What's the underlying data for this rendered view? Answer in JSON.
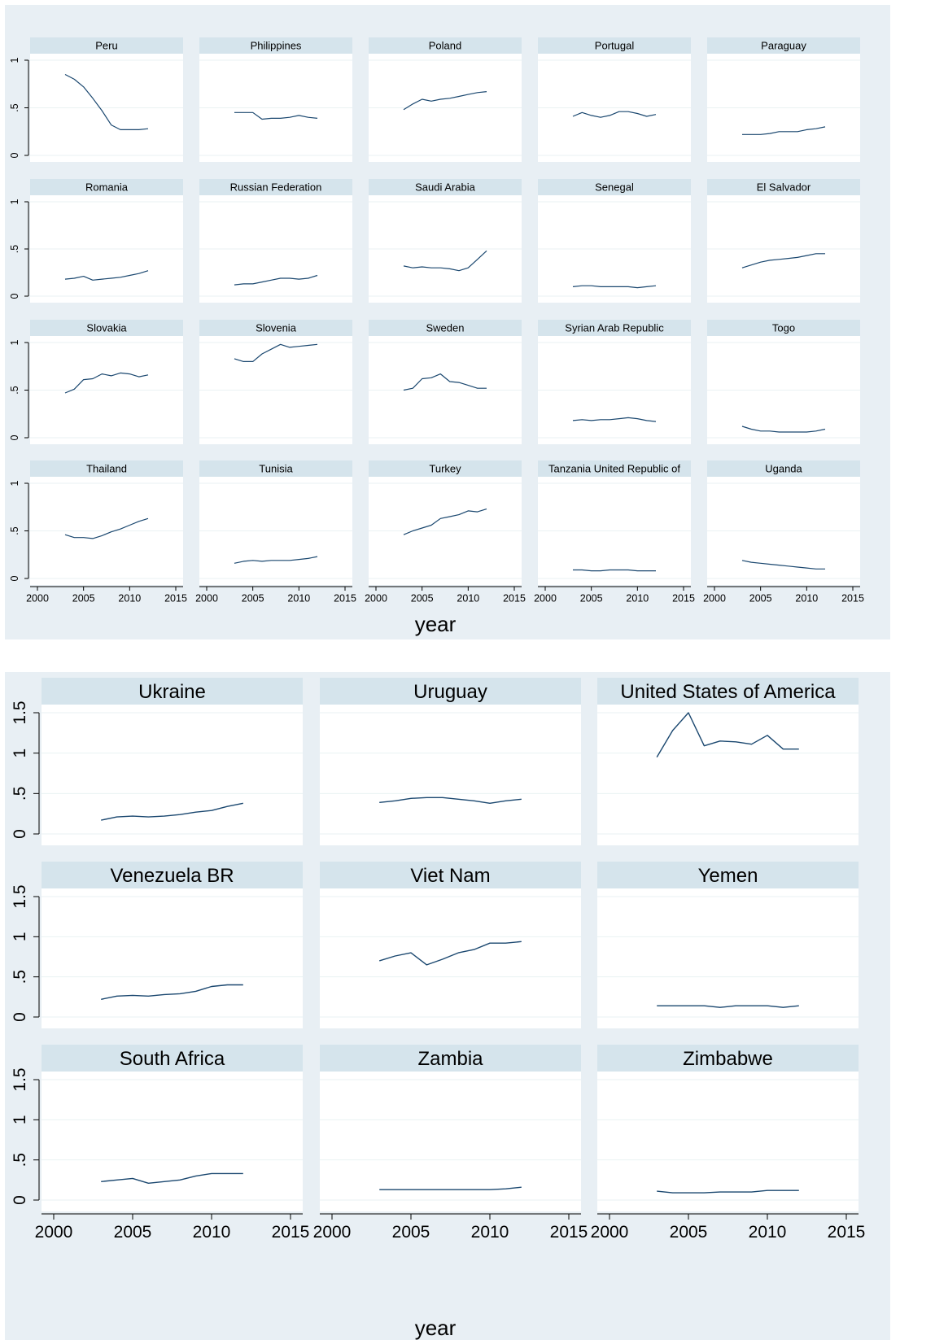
{
  "chart_data": [
    {
      "type": "line",
      "xlabel": "year",
      "ylabel": "",
      "xlim": [
        2000,
        2015
      ],
      "ylim": [
        0,
        1
      ],
      "xticks": [
        2000,
        2005,
        2010,
        2015
      ],
      "yticks": [
        0,
        0.5,
        1
      ],
      "ytick_labels": [
        "0",
        ".5",
        "1"
      ],
      "x": [
        2003,
        2004,
        2005,
        2006,
        2007,
        2008,
        2009,
        2010,
        2011,
        2012
      ],
      "panels": [
        {
          "name": "Peru",
          "values": [
            0.85,
            0.8,
            0.72,
            0.6,
            0.47,
            0.32,
            0.27,
            0.27,
            0.27,
            0.28
          ]
        },
        {
          "name": "Philippines",
          "values": [
            0.45,
            0.45,
            0.45,
            0.38,
            0.39,
            0.39,
            0.4,
            0.42,
            0.4,
            0.39
          ]
        },
        {
          "name": "Poland",
          "values": [
            0.48,
            0.54,
            0.59,
            0.57,
            0.59,
            0.6,
            0.62,
            0.64,
            0.66,
            0.67
          ]
        },
        {
          "name": "Portugal",
          "values": [
            0.41,
            0.45,
            0.42,
            0.4,
            0.42,
            0.46,
            0.46,
            0.44,
            0.41,
            0.43
          ]
        },
        {
          "name": "Paraguay",
          "values": [
            0.22,
            0.22,
            0.22,
            0.23,
            0.25,
            0.25,
            0.25,
            0.27,
            0.28,
            0.3
          ]
        },
        {
          "name": "Romania",
          "values": [
            0.18,
            0.19,
            0.21,
            0.17,
            0.18,
            0.19,
            0.2,
            0.22,
            0.24,
            0.27
          ]
        },
        {
          "name": "Russian Federation",
          "values": [
            0.12,
            0.13,
            0.13,
            0.15,
            0.17,
            0.19,
            0.19,
            0.18,
            0.19,
            0.22
          ]
        },
        {
          "name": "Saudi Arabia",
          "values": [
            0.32,
            0.3,
            0.31,
            0.3,
            0.3,
            0.29,
            0.27,
            0.3,
            0.39,
            0.48
          ]
        },
        {
          "name": "Senegal",
          "values": [
            0.1,
            0.11,
            0.11,
            0.1,
            0.1,
            0.1,
            0.1,
            0.09,
            0.1,
            0.11
          ]
        },
        {
          "name": "El Salvador",
          "values": [
            0.3,
            0.33,
            0.36,
            0.38,
            0.39,
            0.4,
            0.41,
            0.43,
            0.45,
            0.45
          ]
        },
        {
          "name": "Slovakia",
          "values": [
            0.47,
            0.51,
            0.61,
            0.62,
            0.67,
            0.65,
            0.68,
            0.67,
            0.64,
            0.66
          ]
        },
        {
          "name": "Slovenia",
          "values": [
            0.83,
            0.8,
            0.8,
            0.88,
            0.93,
            0.98,
            0.95,
            0.96,
            0.97,
            0.98
          ]
        },
        {
          "name": "Sweden",
          "values": [
            0.5,
            0.52,
            0.62,
            0.63,
            0.67,
            0.59,
            0.58,
            0.55,
            0.52,
            0.52
          ]
        },
        {
          "name": "Syrian Arab Republic",
          "values": [
            0.18,
            0.19,
            0.18,
            0.19,
            0.19,
            0.2,
            0.21,
            0.2,
            0.18,
            0.17
          ]
        },
        {
          "name": "Togo",
          "values": [
            0.12,
            0.09,
            0.07,
            0.07,
            0.06,
            0.06,
            0.06,
            0.06,
            0.07,
            0.09
          ]
        },
        {
          "name": "Thailand",
          "values": [
            0.46,
            0.43,
            0.43,
            0.42,
            0.45,
            0.49,
            0.52,
            0.56,
            0.6,
            0.63
          ]
        },
        {
          "name": "Tunisia",
          "values": [
            0.16,
            0.18,
            0.19,
            0.18,
            0.19,
            0.19,
            0.19,
            0.2,
            0.21,
            0.23
          ]
        },
        {
          "name": "Turkey",
          "values": [
            0.46,
            0.5,
            0.53,
            0.56,
            0.63,
            0.65,
            0.67,
            0.71,
            0.7,
            0.73
          ]
        },
        {
          "name": "Tanzania United Republic of",
          "values": [
            0.09,
            0.09,
            0.08,
            0.08,
            0.09,
            0.09,
            0.09,
            0.08,
            0.08,
            0.08
          ]
        },
        {
          "name": "Uganda",
          "values": [
            0.19,
            0.17,
            0.16,
            0.15,
            0.14,
            0.13,
            0.12,
            0.11,
            0.1,
            0.1
          ]
        }
      ]
    },
    {
      "type": "line",
      "xlabel": "year",
      "ylabel": "",
      "xlim": [
        2000,
        2015
      ],
      "ylim": [
        0,
        1.5
      ],
      "xticks": [
        2000,
        2005,
        2010,
        2015
      ],
      "yticks": [
        0,
        0.5,
        1,
        1.5
      ],
      "ytick_labels": [
        "0",
        ".5",
        "1",
        "1.5"
      ],
      "x": [
        2003,
        2004,
        2005,
        2006,
        2007,
        2008,
        2009,
        2010,
        2011,
        2012
      ],
      "panels": [
        {
          "name": "Ukraine",
          "values": [
            0.17,
            0.21,
            0.22,
            0.21,
            0.22,
            0.24,
            0.27,
            0.29,
            0.34,
            0.38
          ]
        },
        {
          "name": "Uruguay",
          "values": [
            0.39,
            0.41,
            0.44,
            0.45,
            0.45,
            0.43,
            0.41,
            0.38,
            0.41,
            0.43
          ]
        },
        {
          "name": "United States of America",
          "values": [
            0.95,
            1.28,
            1.5,
            1.09,
            1.15,
            1.14,
            1.11,
            1.22,
            1.05,
            1.05
          ]
        },
        {
          "name": "Venezuela BR",
          "values": [
            0.22,
            0.26,
            0.27,
            0.26,
            0.28,
            0.29,
            0.32,
            0.38,
            0.4,
            0.4
          ]
        },
        {
          "name": "Viet Nam",
          "values": [
            0.7,
            0.76,
            0.8,
            0.65,
            0.72,
            0.8,
            0.84,
            0.92,
            0.92,
            0.94
          ]
        },
        {
          "name": "Yemen",
          "values": [
            0.14,
            0.14,
            0.14,
            0.14,
            0.12,
            0.14,
            0.14,
            0.14,
            0.12,
            0.14
          ]
        },
        {
          "name": "South Africa",
          "values": [
            0.23,
            0.25,
            0.27,
            0.21,
            0.23,
            0.25,
            0.3,
            0.33,
            0.33,
            0.33
          ]
        },
        {
          "name": "Zambia",
          "values": [
            0.13,
            0.13,
            0.13,
            0.13,
            0.13,
            0.13,
            0.13,
            0.13,
            0.14,
            0.16
          ]
        },
        {
          "name": "Zimbabwe",
          "values": [
            0.11,
            0.09,
            0.09,
            0.09,
            0.1,
            0.1,
            0.1,
            0.12,
            0.12,
            0.12
          ]
        }
      ]
    }
  ],
  "colors": {
    "background": "#e8eff4",
    "plot_region": "#ffffff",
    "strip": "#d5e4ec",
    "grid": "#eaf2f3",
    "line": "#1a476f",
    "axis": "#000000"
  }
}
